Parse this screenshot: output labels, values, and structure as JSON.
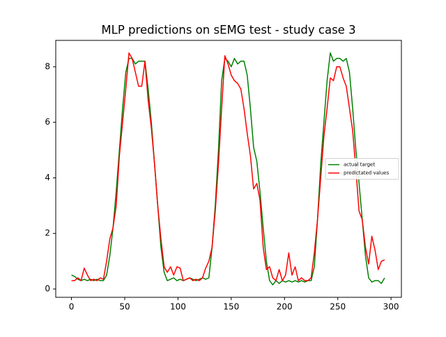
{
  "chart_data": {
    "type": "line",
    "title": "MLP predictions on sEMG test - study case 3",
    "x": [
      0,
      3,
      6,
      9,
      12,
      15,
      18,
      21,
      24,
      27,
      30,
      33,
      36,
      39,
      42,
      45,
      48,
      51,
      54,
      57,
      60,
      63,
      66,
      69,
      72,
      75,
      78,
      81,
      84,
      87,
      90,
      93,
      96,
      99,
      102,
      105,
      108,
      111,
      114,
      117,
      120,
      123,
      126,
      129,
      132,
      135,
      138,
      141,
      144,
      147,
      150,
      153,
      156,
      159,
      162,
      165,
      168,
      171,
      174,
      177,
      180,
      183,
      186,
      189,
      192,
      195,
      198,
      201,
      204,
      207,
      210,
      213,
      216,
      219,
      222,
      225,
      228,
      231,
      234,
      237,
      240,
      243,
      246,
      249,
      252,
      255,
      258,
      261,
      264,
      267,
      270,
      273,
      276,
      279,
      282,
      285,
      288,
      291,
      294
    ],
    "series": [
      {
        "name": "actual target",
        "color": "#008000",
        "values": [
          0.5,
          0.45,
          0.35,
          0.3,
          0.35,
          0.3,
          0.35,
          0.3,
          0.35,
          0.3,
          0.3,
          0.5,
          1.2,
          2.2,
          3.5,
          5,
          6.5,
          7.8,
          8.3,
          8.3,
          8.1,
          8.2,
          8.2,
          8.2,
          7.2,
          6,
          4.5,
          3,
          1.5,
          0.6,
          0.3,
          0.35,
          0.4,
          0.3,
          0.35,
          0.3,
          0.35,
          0.4,
          0.35,
          0.3,
          0.35,
          0.4,
          0.35,
          0.4,
          1.5,
          3,
          5,
          7.5,
          8.3,
          8.2,
          8,
          8.3,
          8.1,
          8.2,
          8.2,
          7.7,
          6.5,
          5.1,
          4.6,
          3.5,
          2.2,
          1,
          0.3,
          0.15,
          0.3,
          0.2,
          0.3,
          0.25,
          0.3,
          0.25,
          0.3,
          0.25,
          0.3,
          0.25,
          0.3,
          0.3,
          0.8,
          2.5,
          4.5,
          6,
          7.5,
          8.5,
          8.2,
          8.3,
          8.3,
          8.2,
          8.3,
          7.8,
          6.5,
          5,
          3.8,
          2.5,
          1.2,
          0.4,
          0.25,
          0.3,
          0.3,
          0.2,
          0.4
        ]
      },
      {
        "name": "predictated values",
        "color": "#ff0000",
        "values": [
          0.3,
          0.3,
          0.4,
          0.3,
          0.75,
          0.5,
          0.3,
          0.35,
          0.3,
          0.4,
          0.35,
          1,
          1.8,
          2.2,
          3,
          4.8,
          6,
          7.2,
          8.5,
          8.3,
          7.8,
          7.3,
          7.3,
          8.2,
          6.8,
          5.8,
          4.5,
          3,
          1.8,
          0.8,
          0.6,
          0.8,
          0.5,
          0.8,
          0.75,
          0.3,
          0.35,
          0.4,
          0.3,
          0.35,
          0.3,
          0.4,
          0.75,
          1,
          1.5,
          2.8,
          4.5,
          6.5,
          8.4,
          8.1,
          7.7,
          7.5,
          7.4,
          7.2,
          6.5,
          5.6,
          4.8,
          3.6,
          3.8,
          3.2,
          1.5,
          0.7,
          0.8,
          0.4,
          0.3,
          0.7,
          0.3,
          0.5,
          1.3,
          0.5,
          0.8,
          0.3,
          0.4,
          0.3,
          0.3,
          0.4,
          1.3,
          2.5,
          4,
          5.5,
          6.5,
          7.6,
          7.5,
          8,
          8,
          7.6,
          7.3,
          6.5,
          5.7,
          4.3,
          2.8,
          2.5,
          1.5,
          0.9,
          1.9,
          1.4,
          0.7,
          1,
          1.05
        ]
      }
    ],
    "xlim": [
      -14.75,
      309.75
    ],
    "xticks": [
      0,
      50,
      100,
      150,
      200,
      250,
      300
    ],
    "ylim": [
      -0.3,
      8.95
    ],
    "yticks": [
      0,
      2,
      4,
      6,
      8
    ],
    "legend": "center right"
  }
}
